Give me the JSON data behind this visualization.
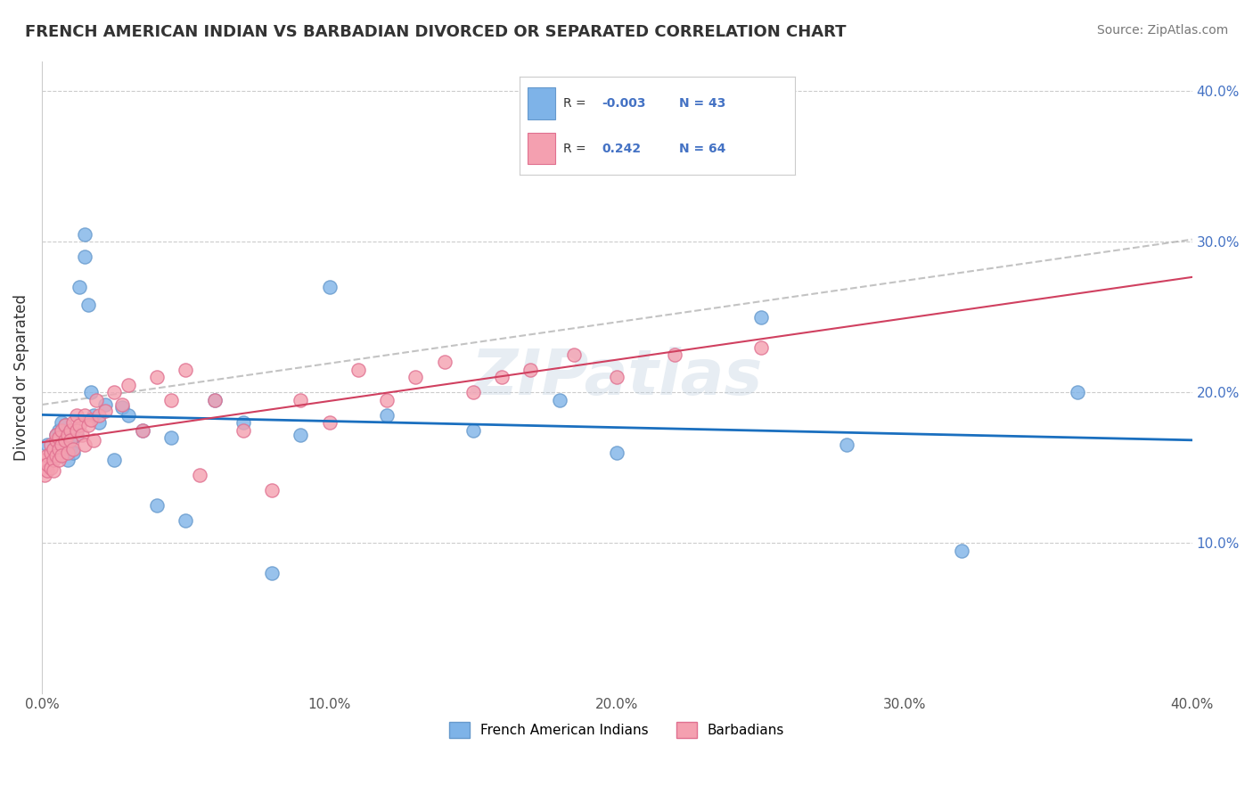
{
  "title": "FRENCH AMERICAN INDIAN VS BARBADIAN DIVORCED OR SEPARATED CORRELATION CHART",
  "source": "Source: ZipAtlas.com",
  "ylabel": "Divorced or Separated",
  "xlim": [
    0.0,
    0.4
  ],
  "ylim": [
    0.0,
    0.42
  ],
  "xticks": [
    0.0,
    0.1,
    0.2,
    0.3,
    0.4
  ],
  "yticks": [
    0.1,
    0.2,
    0.3,
    0.4
  ],
  "xtick_labels": [
    "0.0%",
    "10.0%",
    "20.0%",
    "30.0%",
    "40.0%"
  ],
  "ytick_labels": [
    "10.0%",
    "20.0%",
    "30.0%",
    "40.0%"
  ],
  "legend_labels": [
    "French American Indians",
    "Barbadians"
  ],
  "blue_R": "-0.003",
  "blue_N": "43",
  "pink_R": "0.242",
  "pink_N": "64",
  "blue_color": "#7EB3E8",
  "pink_color": "#F4A0B0",
  "blue_edge": "#6699CC",
  "pink_edge": "#E07090",
  "trend_blue_color": "#1A6FBF",
  "trend_pink_color": "#D04060",
  "trend_gray_color": "#AAAAAA",
  "background_color": "#FFFFFF",
  "watermark": "ZIPatlas",
  "blue_x": [
    0.002,
    0.005,
    0.005,
    0.006,
    0.007,
    0.007,
    0.008,
    0.008,
    0.009,
    0.009,
    0.01,
    0.01,
    0.011,
    0.011,
    0.012,
    0.013,
    0.015,
    0.015,
    0.016,
    0.017,
    0.018,
    0.02,
    0.022,
    0.025,
    0.028,
    0.03,
    0.035,
    0.04,
    0.045,
    0.05,
    0.06,
    0.07,
    0.08,
    0.09,
    0.1,
    0.12,
    0.15,
    0.18,
    0.2,
    0.25,
    0.28,
    0.32,
    0.36
  ],
  "blue_y": [
    0.165,
    0.172,
    0.168,
    0.175,
    0.18,
    0.162,
    0.178,
    0.165,
    0.17,
    0.155,
    0.168,
    0.162,
    0.175,
    0.16,
    0.172,
    0.27,
    0.305,
    0.29,
    0.258,
    0.2,
    0.185,
    0.18,
    0.192,
    0.155,
    0.19,
    0.185,
    0.175,
    0.125,
    0.17,
    0.115,
    0.195,
    0.18,
    0.08,
    0.172,
    0.27,
    0.185,
    0.175,
    0.195,
    0.16,
    0.25,
    0.165,
    0.095,
    0.2
  ],
  "pink_x": [
    0.001,
    0.001,
    0.002,
    0.002,
    0.002,
    0.003,
    0.003,
    0.003,
    0.004,
    0.004,
    0.004,
    0.005,
    0.005,
    0.005,
    0.006,
    0.006,
    0.006,
    0.007,
    0.007,
    0.007,
    0.008,
    0.008,
    0.009,
    0.009,
    0.01,
    0.01,
    0.011,
    0.011,
    0.012,
    0.012,
    0.013,
    0.014,
    0.015,
    0.015,
    0.016,
    0.017,
    0.018,
    0.019,
    0.02,
    0.022,
    0.025,
    0.028,
    0.03,
    0.035,
    0.04,
    0.045,
    0.05,
    0.055,
    0.06,
    0.07,
    0.08,
    0.09,
    0.1,
    0.11,
    0.12,
    0.13,
    0.14,
    0.15,
    0.16,
    0.17,
    0.185,
    0.2,
    0.22,
    0.25
  ],
  "pink_y": [
    0.145,
    0.155,
    0.148,
    0.158,
    0.152,
    0.16,
    0.15,
    0.165,
    0.155,
    0.162,
    0.148,
    0.168,
    0.158,
    0.172,
    0.162,
    0.155,
    0.17,
    0.165,
    0.175,
    0.158,
    0.168,
    0.178,
    0.172,
    0.16,
    0.175,
    0.168,
    0.18,
    0.162,
    0.185,
    0.175,
    0.178,
    0.172,
    0.185,
    0.165,
    0.178,
    0.182,
    0.168,
    0.195,
    0.185,
    0.188,
    0.2,
    0.192,
    0.205,
    0.175,
    0.21,
    0.195,
    0.215,
    0.145,
    0.195,
    0.175,
    0.135,
    0.195,
    0.18,
    0.215,
    0.195,
    0.21,
    0.22,
    0.2,
    0.21,
    0.215,
    0.225,
    0.21,
    0.225,
    0.23
  ]
}
